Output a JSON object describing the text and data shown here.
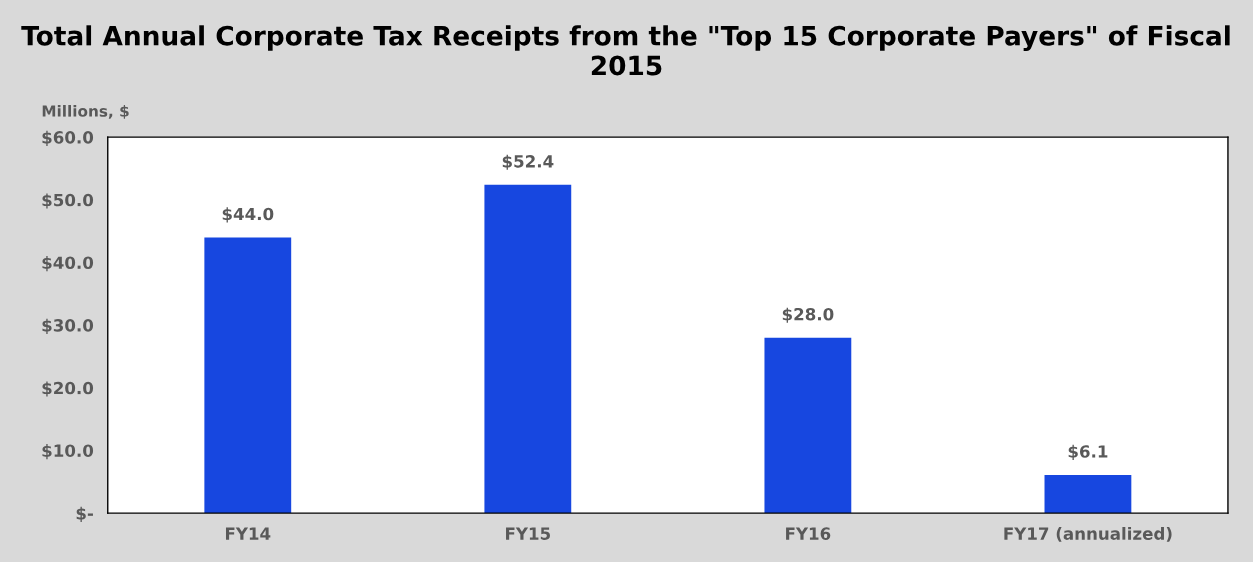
{
  "chart_data": {
    "type": "bar",
    "title": "Total Annual Corporate Tax Receipts from the \"Top 15 Corporate Payers\" of Fiscal 2015",
    "ylabel": "Millions, $",
    "categories": [
      "FY14",
      "FY15",
      "FY16",
      "FY17 (annualized)"
    ],
    "values": [
      44.0,
      52.4,
      28.0,
      6.1
    ],
    "value_labels": [
      "$44.0",
      "$52.4",
      "$28.0",
      "$6.1"
    ],
    "color": "#1747e0",
    "ylim": [
      0,
      60
    ],
    "yticks": [
      {
        "value": 0,
        "label": "$-"
      },
      {
        "value": 10,
        "label": "$10.0"
      },
      {
        "value": 20,
        "label": "$20.0"
      },
      {
        "value": 30,
        "label": "$30.0"
      },
      {
        "value": 40,
        "label": "$40.0"
      },
      {
        "value": 50,
        "label": "$50.0"
      },
      {
        "value": 60,
        "label": "$60.0"
      }
    ],
    "grid": false,
    "legend": false
  }
}
